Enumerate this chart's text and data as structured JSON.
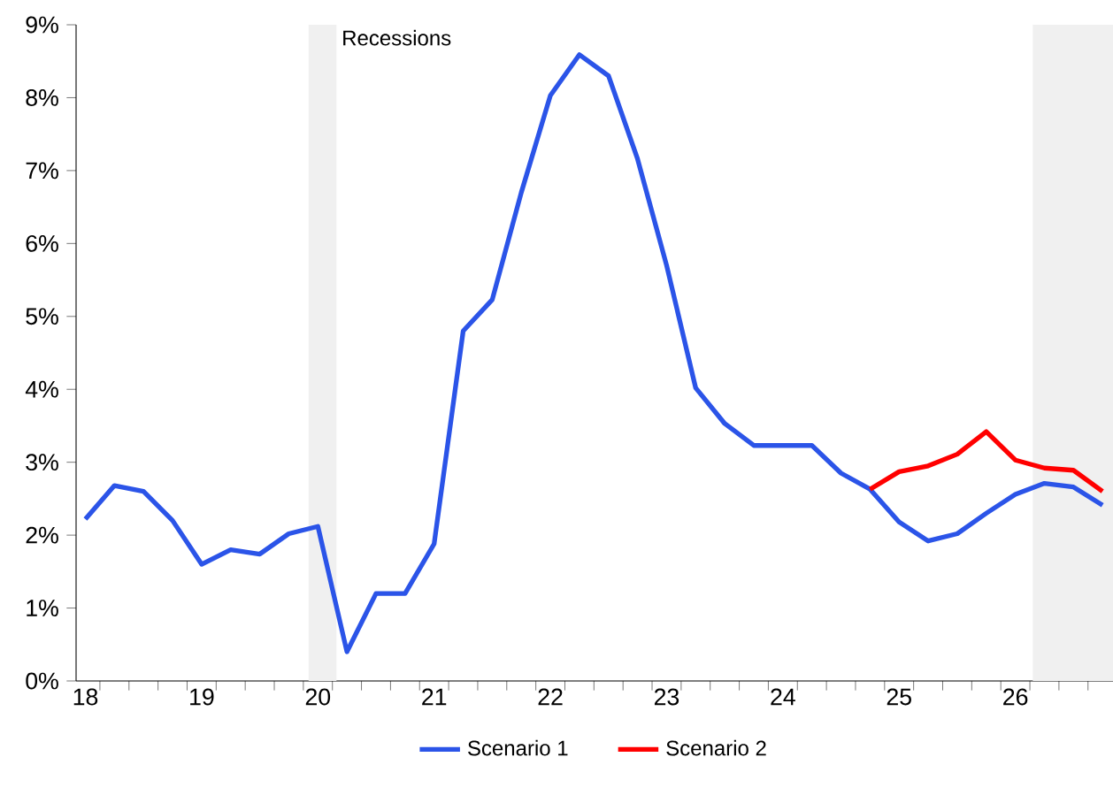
{
  "chart_data": {
    "type": "line",
    "x": [
      18,
      18.25,
      18.5,
      18.75,
      19,
      19.25,
      19.5,
      19.75,
      20,
      20.25,
      20.5,
      20.75,
      21,
      21.25,
      21.5,
      21.75,
      22,
      22.25,
      22.5,
      22.75,
      23,
      23.25,
      23.5,
      23.75,
      24,
      24.25,
      24.5,
      24.75,
      25,
      25.25,
      25.5,
      25.75,
      26,
      26.25,
      26.5,
      26.75
    ],
    "series": [
      {
        "name": "Scenario 1",
        "color": "#2b54e8",
        "values": [
          2.22,
          2.68,
          2.6,
          2.2,
          1.6,
          1.8,
          1.74,
          2.02,
          2.12,
          0.4,
          1.2,
          1.2,
          1.88,
          4.8,
          5.23,
          6.7,
          8.03,
          8.59,
          8.3,
          7.16,
          5.7,
          4.02,
          3.53,
          3.23,
          3.23,
          3.23,
          2.85,
          2.63,
          2.18,
          1.92,
          2.02,
          2.3,
          2.56,
          2.71,
          2.66,
          2.41
        ]
      },
      {
        "name": "Scenario 2",
        "color": "#ff0000",
        "values": [
          null,
          null,
          null,
          null,
          null,
          null,
          null,
          null,
          null,
          null,
          null,
          null,
          null,
          null,
          null,
          null,
          null,
          null,
          null,
          null,
          null,
          null,
          null,
          null,
          null,
          null,
          null,
          2.63,
          2.87,
          2.95,
          3.11,
          3.42,
          3.03,
          2.92,
          2.89,
          2.6
        ]
      }
    ],
    "xlim": [
      17.92,
      26.84
    ],
    "ylim": [
      0,
      9
    ],
    "xticks": [
      18,
      19,
      20,
      21,
      22,
      23,
      24,
      25,
      26,
      {
        "value": 18.125,
        "label": null
      },
      {
        "value": 18.375,
        "label": null
      },
      {
        "value": 18.625,
        "label": null
      },
      {
        "value": 18.875,
        "label": null
      },
      {
        "value": 19.125,
        "label": null
      },
      {
        "value": 19.375,
        "label": null
      },
      {
        "value": 19.625,
        "label": null
      },
      {
        "value": 19.875,
        "label": null
      },
      {
        "value": 20.125,
        "label": null
      },
      {
        "value": 20.375,
        "label": null
      },
      {
        "value": 20.625,
        "label": null
      },
      {
        "value": 20.875,
        "label": null
      },
      {
        "value": 21.125,
        "label": null
      },
      {
        "value": 21.375,
        "label": null
      },
      {
        "value": 21.625,
        "label": null
      },
      {
        "value": 21.875,
        "label": null
      },
      {
        "value": 22.125,
        "label": null
      },
      {
        "value": 22.375,
        "label": null
      },
      {
        "value": 22.625,
        "label": null
      },
      {
        "value": 22.875,
        "label": null
      },
      {
        "value": 23.125,
        "label": null
      },
      {
        "value": 23.375,
        "label": null
      },
      {
        "value": 23.625,
        "label": null
      },
      {
        "value": 23.875,
        "label": null
      },
      {
        "value": 24.125,
        "label": null
      },
      {
        "value": 24.375,
        "label": null
      },
      {
        "value": 24.625,
        "label": null
      },
      {
        "value": 24.875,
        "label": null
      },
      {
        "value": 25.125,
        "label": null
      },
      {
        "value": 25.375,
        "label": null
      },
      {
        "value": 25.625,
        "label": null
      },
      {
        "value": 25.875,
        "label": null
      },
      {
        "value": 26.125,
        "label": null
      },
      {
        "value": 26.375,
        "label": null
      },
      {
        "value": 26.625,
        "label": null
      }
    ],
    "yticks": [
      {
        "value": 0,
        "label": "0%"
      },
      {
        "value": 1,
        "label": "1%"
      },
      {
        "value": 2,
        "label": "2%"
      },
      {
        "value": 3,
        "label": "3%"
      },
      {
        "value": 4,
        "label": "4%"
      },
      {
        "value": 5,
        "label": "5%"
      },
      {
        "value": 6,
        "label": "6%"
      },
      {
        "value": 7,
        "label": "7%"
      },
      {
        "value": 8,
        "label": "8%"
      },
      {
        "value": 9,
        "label": "9%"
      }
    ],
    "bands": [
      {
        "axis": "x",
        "from": 19.92,
        "to": 20.16,
        "label": "Recessions",
        "color": "#f0f0f0"
      },
      {
        "axis": "x",
        "from": 26.15,
        "to": 26.84,
        "color": "#f0f0f0"
      }
    ],
    "legend": "bottom",
    "grid": false,
    "marker": "none",
    "line_style": "solid"
  }
}
